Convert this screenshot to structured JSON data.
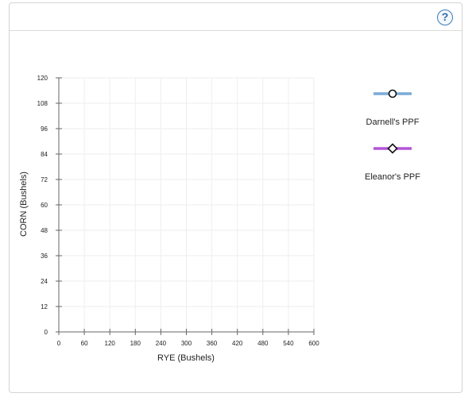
{
  "help": {
    "label": "?"
  },
  "chart_data": {
    "type": "line",
    "xlabel": "RYE (Bushels)",
    "ylabel": "CORN (Bushels)",
    "xlim": [
      0,
      600
    ],
    "ylim": [
      0,
      120
    ],
    "xticks": [
      0,
      60,
      120,
      180,
      240,
      300,
      360,
      420,
      480,
      540,
      600
    ],
    "yticks": [
      0,
      12,
      24,
      36,
      48,
      60,
      72,
      84,
      96,
      108,
      120
    ],
    "grid": true,
    "legend_position": "right",
    "series": [
      {
        "name": "Darnell's PPF",
        "color": "#7aabd6",
        "marker": "circle",
        "points": []
      },
      {
        "name": "Eleanor's PPF",
        "color": "#b455d6",
        "marker": "diamond",
        "points": []
      }
    ]
  }
}
